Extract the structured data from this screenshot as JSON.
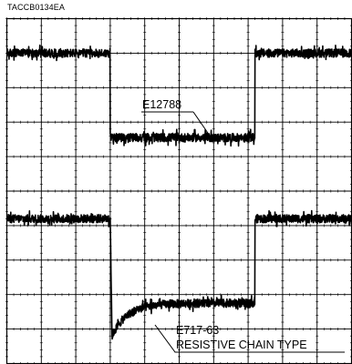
{
  "figure_id": "TACCB0134EA",
  "chart_data": {
    "type": "line",
    "title": "",
    "xlabel": "",
    "ylabel": "",
    "grid": true,
    "grid_divisions": {
      "x": 10,
      "y": 10
    },
    "x_range": [
      0,
      10
    ],
    "y_range": [
      0,
      10
    ],
    "series": [
      {
        "name": "E12788",
        "signal": "square pulse",
        "baseline_level": 9.0,
        "pulse_level": 6.55,
        "pulse_start": 3.0,
        "pulse_end": 7.2,
        "noise_amplitude": 0.12,
        "recovery": "flat"
      },
      {
        "name": "E717-63",
        "signal": "square pulse",
        "baseline_level": 4.2,
        "pulse_level": 1.75,
        "pulse_start": 3.0,
        "pulse_end": 7.2,
        "noise_amplitude": 0.12,
        "undershoot_level": 0.8,
        "recovery": "exponential"
      }
    ],
    "annotations": [
      {
        "text": "E12788",
        "points_to": "E12788"
      },
      {
        "text": "E717-63",
        "points_to": "E717-63"
      },
      {
        "text": "RESISTIVE CHAIN TYPE",
        "points_to": "E717-63"
      }
    ]
  }
}
